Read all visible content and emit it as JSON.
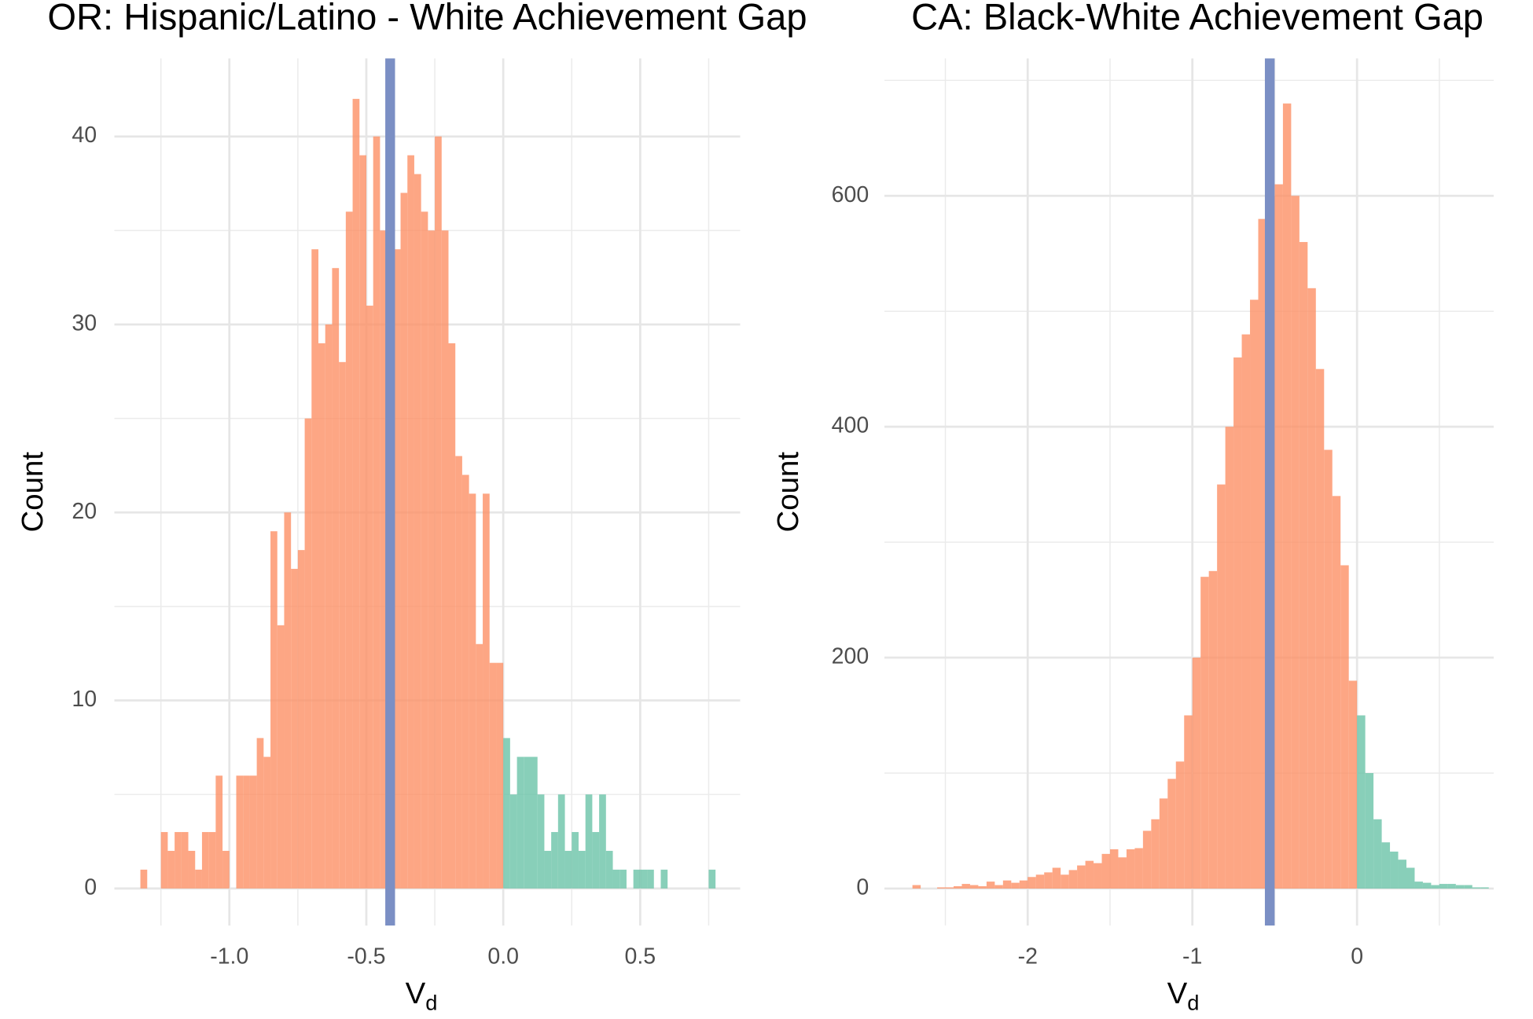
{
  "chart_data": [
    {
      "type": "histogram",
      "title": "OR: Hispanic/Latino - White Achievement Gap",
      "xlabel": "V",
      "xlabel_sub": "d",
      "ylabel": "Count",
      "xlim": [
        -1.42,
        0.865
      ],
      "ylim": [
        -1.97,
        44.15
      ],
      "xticks": [
        {
          "value": -1,
          "label": "-1.0"
        },
        -0.5,
        {
          "value": 0,
          "label": "0.0"
        },
        0.5
      ],
      "x_minor_ticks": [
        -1.25,
        -0.75,
        -0.25,
        0.25,
        0.75
      ],
      "yticks": [
        0,
        10,
        20,
        30,
        40
      ],
      "y_minor_ticks": [
        5,
        15,
        25,
        35
      ],
      "grid": true,
      "bins": [
        -1.325,
        -1.3,
        -1.275,
        -1.25,
        -1.225,
        -1.2,
        -1.175,
        -1.15,
        -1.125,
        -1.1,
        -1.075,
        -1.05,
        -1.025,
        -1,
        -0.975,
        -0.95,
        -0.925,
        -0.9,
        -0.875,
        -0.85,
        -0.825,
        -0.8,
        -0.775,
        -0.75,
        -0.725,
        -0.7,
        -0.675,
        -0.65,
        -0.625,
        -0.6,
        -0.575,
        -0.55,
        -0.525,
        -0.5,
        -0.475,
        -0.45,
        -0.425,
        -0.4,
        -0.375,
        -0.35,
        -0.325,
        -0.3,
        -0.275,
        -0.25,
        -0.225,
        -0.2,
        -0.175,
        -0.15,
        -0.125,
        -0.1,
        -0.075,
        -0.05,
        -0.025,
        0,
        0.025,
        0.05,
        0.075,
        0.1,
        0.125,
        0.15,
        0.175,
        0.2,
        0.225,
        0.25,
        0.275,
        0.3,
        0.325,
        0.35,
        0.375,
        0.4,
        0.425,
        0.45,
        0.475,
        0.5,
        0.525,
        0.55,
        0.575,
        0.6,
        0.625,
        0.65,
        0.675,
        0.7,
        0.725,
        0.75,
        0.775
      ],
      "series": [
        {
          "color": "#fc8d62",
          "values": [
            1,
            0,
            0,
            3,
            2,
            3,
            3,
            2,
            1,
            3,
            3,
            6,
            2,
            0,
            6,
            6,
            6,
            8,
            7,
            19,
            14,
            20,
            17,
            18,
            25,
            34,
            29,
            30,
            33,
            28,
            36,
            42,
            39,
            31,
            40,
            35,
            32,
            34,
            37,
            39,
            38,
            36,
            35,
            40,
            35,
            29,
            23,
            22,
            21,
            13,
            21,
            12,
            12,
            0,
            0,
            0,
            0,
            0,
            0,
            0,
            0,
            0,
            0,
            0,
            0,
            0,
            0,
            0,
            0,
            0,
            0,
            0,
            0,
            0,
            0,
            0,
            0,
            0,
            0,
            0,
            0,
            0,
            0,
            0
          ]
        },
        {
          "color": "#66c2a5",
          "values": [
            0,
            0,
            0,
            0,
            0,
            0,
            0,
            0,
            0,
            0,
            0,
            0,
            0,
            0,
            0,
            0,
            0,
            0,
            0,
            0,
            0,
            0,
            0,
            0,
            0,
            0,
            0,
            0,
            0,
            0,
            0,
            0,
            0,
            0,
            0,
            0,
            0,
            0,
            0,
            0,
            0,
            0,
            0,
            0,
            0,
            0,
            0,
            0,
            0,
            0,
            0,
            0,
            0,
            8,
            5,
            7,
            7,
            7,
            5,
            2,
            3,
            5,
            2,
            3,
            2,
            5,
            3,
            5,
            2,
            1,
            1,
            0,
            1,
            1,
            1,
            0,
            1,
            0,
            0,
            0,
            0,
            0,
            0,
            1
          ]
        }
      ],
      "vline": {
        "value": -0.413,
        "color": "#7b8fc4"
      }
    },
    {
      "type": "histogram",
      "title": "CA: Black-White Achievement Gap",
      "xlabel": "V",
      "xlabel_sub": "d",
      "ylabel": "Count",
      "xlim": [
        -2.87,
        0.83
      ],
      "ylim": [
        -32,
        719
      ],
      "xticks": [
        -2,
        -1,
        0
      ],
      "x_minor_ticks": [
        -2.5,
        -1.5,
        -0.5,
        0.5
      ],
      "yticks": [
        0,
        200,
        400,
        600
      ],
      "y_minor_ticks": [
        100,
        300,
        500,
        700
      ],
      "grid": true,
      "bins": [
        -2.7,
        -2.65,
        -2.6,
        -2.55,
        -2.5,
        -2.45,
        -2.4,
        -2.35,
        -2.3,
        -2.25,
        -2.2,
        -2.15,
        -2.1,
        -2.05,
        -2,
        -1.95,
        -1.9,
        -1.85,
        -1.8,
        -1.75,
        -1.7,
        -1.65,
        -1.6,
        -1.55,
        -1.5,
        -1.45,
        -1.4,
        -1.35,
        -1.3,
        -1.25,
        -1.2,
        -1.15,
        -1.1,
        -1.05,
        -1,
        -0.95,
        -0.9,
        -0.85,
        -0.8,
        -0.75,
        -0.7,
        -0.65,
        -0.6,
        -0.55,
        -0.5,
        -0.45,
        -0.4,
        -0.35,
        -0.3,
        -0.25,
        -0.2,
        -0.15,
        -0.1,
        -0.05,
        0,
        0.05,
        0.1,
        0.15,
        0.2,
        0.25,
        0.3,
        0.35,
        0.4,
        0.45,
        0.5,
        0.55,
        0.6,
        0.65,
        0.7,
        0.75,
        0.8
      ],
      "series": [
        {
          "color": "#fc8d62",
          "values": [
            3,
            0,
            0,
            1,
            1,
            2,
            4,
            3,
            2,
            6,
            3,
            7,
            5,
            7,
            10,
            12,
            14,
            18,
            12,
            16,
            20,
            24,
            22,
            30,
            34,
            27,
            34,
            35,
            50,
            60,
            78,
            95,
            110,
            150,
            200,
            270,
            275,
            350,
            400,
            460,
            480,
            510,
            580,
            600,
            610,
            680,
            600,
            560,
            520,
            450,
            380,
            340,
            280,
            180,
            0,
            0,
            0,
            0,
            0,
            0,
            0,
            0,
            0,
            0,
            0,
            0,
            0,
            0,
            0,
            0
          ]
        },
        {
          "color": "#66c2a5",
          "values": [
            0,
            0,
            0,
            0,
            0,
            0,
            0,
            0,
            0,
            0,
            0,
            0,
            0,
            0,
            0,
            0,
            0,
            0,
            0,
            0,
            0,
            0,
            0,
            0,
            0,
            0,
            0,
            0,
            0,
            0,
            0,
            0,
            0,
            0,
            0,
            0,
            0,
            0,
            0,
            0,
            0,
            0,
            0,
            0,
            0,
            0,
            0,
            0,
            0,
            0,
            0,
            0,
            0,
            0,
            150,
            100,
            60,
            40,
            32,
            25,
            18,
            6,
            5,
            3,
            4,
            4,
            3,
            3,
            1,
            1
          ]
        }
      ],
      "vline": {
        "value": -0.53,
        "color": "#7b8fc4"
      }
    }
  ]
}
